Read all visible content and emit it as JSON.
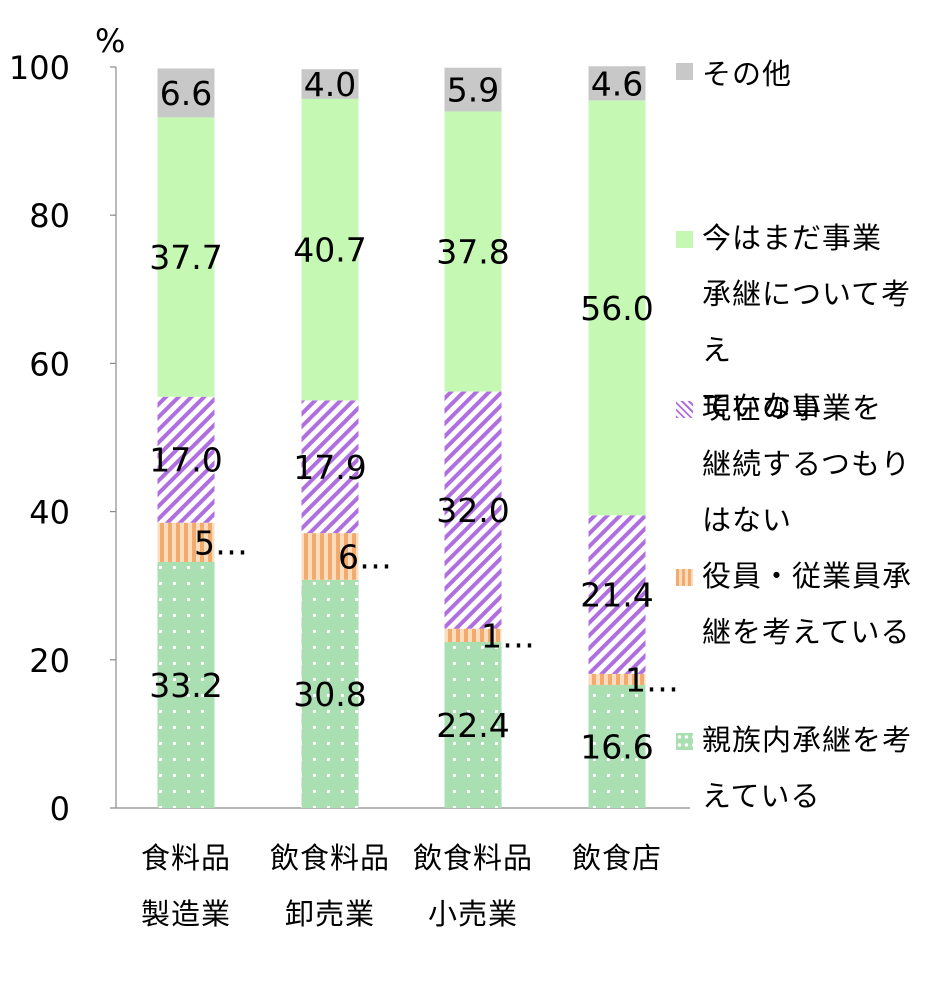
{
  "chart_data": {
    "type": "bar",
    "stacked": true,
    "unit_label": "%",
    "ylim": [
      0,
      100
    ],
    "yticks": [
      "0",
      "20",
      "40",
      "60",
      "80",
      "100"
    ],
    "categories": [
      [
        "食料品",
        "製造業"
      ],
      [
        "飲食料品",
        "卸売業"
      ],
      [
        "飲食料品",
        "小売業"
      ],
      [
        "飲食店"
      ]
    ],
    "series": [
      {
        "name": "親族内承継を考えている",
        "values": [
          33.2,
          30.8,
          22.4,
          16.6
        ],
        "labels": [
          "33.2",
          "30.8",
          "22.4",
          "16.6"
        ],
        "color": "#a9dfb1",
        "pattern": "dots"
      },
      {
        "name": "役員・従業員承継を考えている",
        "values": [
          5.3,
          6.3,
          1.8,
          1.5
        ],
        "labels": [
          "5…",
          "6…",
          "1…",
          "1…"
        ],
        "color": "#f7c08d",
        "pattern": "vstripes"
      },
      {
        "name": "現在の事業を継続するつもりはない",
        "values": [
          17.0,
          17.9,
          32.0,
          21.4
        ],
        "labels": [
          "17.0",
          "17.9",
          "32.0",
          "21.4"
        ],
        "color": "#b06fe0",
        "pattern": "diag"
      },
      {
        "name": "今はまだ事業承継について考えていない",
        "values": [
          37.7,
          40.7,
          37.8,
          56.0
        ],
        "labels": [
          "37.7",
          "40.7",
          "37.8",
          "56.0"
        ],
        "color": "#c5f8b3",
        "pattern": "solid"
      },
      {
        "name": "その他",
        "values": [
          6.6,
          4.0,
          5.9,
          4.6
        ],
        "labels": [
          "6.6",
          "4.0",
          "5.9",
          "4.6"
        ],
        "color": "#c8c8c8",
        "pattern": "solid"
      }
    ],
    "legend_position": "right",
    "grid": false
  }
}
